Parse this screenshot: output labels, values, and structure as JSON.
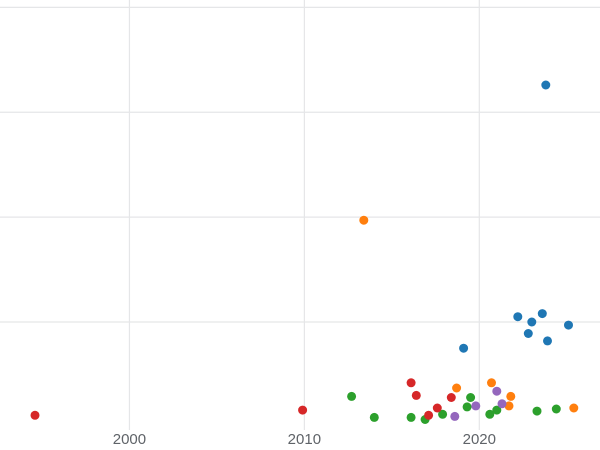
{
  "colors": {
    "background": "#ffffff",
    "gridline": "#e5e6e8",
    "tick_label": "#5f6368"
  },
  "chart_data": {
    "type": "scatter",
    "title": "",
    "xlabel": "",
    "ylabel": "",
    "grid": true,
    "legend": false,
    "x_ticks": [
      2000,
      2010,
      2020
    ],
    "x_tick_labels": [
      "2000",
      "2010",
      "2020"
    ],
    "x_range": [
      1992.6,
      2026.9
    ],
    "y_range": [
      -0.03,
      4.07
    ],
    "y_gridlines": [
      1,
      2,
      3,
      4
    ],
    "point_radius": 4.5,
    "series": [
      {
        "name": "blue",
        "color": "#1f77b4",
        "points": [
          [
            2023.8,
            3.26
          ],
          [
            2019.1,
            0.75
          ],
          [
            2022.2,
            1.05
          ],
          [
            2022.8,
            0.89
          ],
          [
            2023.0,
            1.0
          ],
          [
            2023.6,
            1.08
          ],
          [
            2023.9,
            0.82
          ],
          [
            2025.1,
            0.97
          ]
        ]
      },
      {
        "name": "orange",
        "color": "#ff7f0e",
        "points": [
          [
            2013.4,
            1.97
          ],
          [
            2018.7,
            0.37
          ],
          [
            2020.7,
            0.42
          ],
          [
            2021.7,
            0.2
          ],
          [
            2021.8,
            0.29
          ],
          [
            2025.4,
            0.18
          ]
        ]
      },
      {
        "name": "green",
        "color": "#2ca02c",
        "points": [
          [
            2012.7,
            0.29
          ],
          [
            2014.0,
            0.09
          ],
          [
            2016.1,
            0.09
          ],
          [
            2016.9,
            0.07
          ],
          [
            2017.9,
            0.12
          ],
          [
            2019.3,
            0.19
          ],
          [
            2019.5,
            0.28
          ],
          [
            2020.6,
            0.12
          ],
          [
            2021.0,
            0.16
          ],
          [
            2023.3,
            0.15
          ],
          [
            2024.4,
            0.17
          ]
        ]
      },
      {
        "name": "red",
        "color": "#d62728",
        "points": [
          [
            1994.6,
            0.11
          ],
          [
            2009.9,
            0.16
          ],
          [
            2016.1,
            0.42
          ],
          [
            2016.4,
            0.3
          ],
          [
            2017.1,
            0.11
          ],
          [
            2017.6,
            0.18
          ],
          [
            2018.4,
            0.28
          ]
        ]
      },
      {
        "name": "purple",
        "color": "#9467bd",
        "points": [
          [
            2018.6,
            0.1
          ],
          [
            2019.8,
            0.2
          ],
          [
            2021.0,
            0.34
          ],
          [
            2021.3,
            0.22
          ]
        ]
      }
    ]
  }
}
